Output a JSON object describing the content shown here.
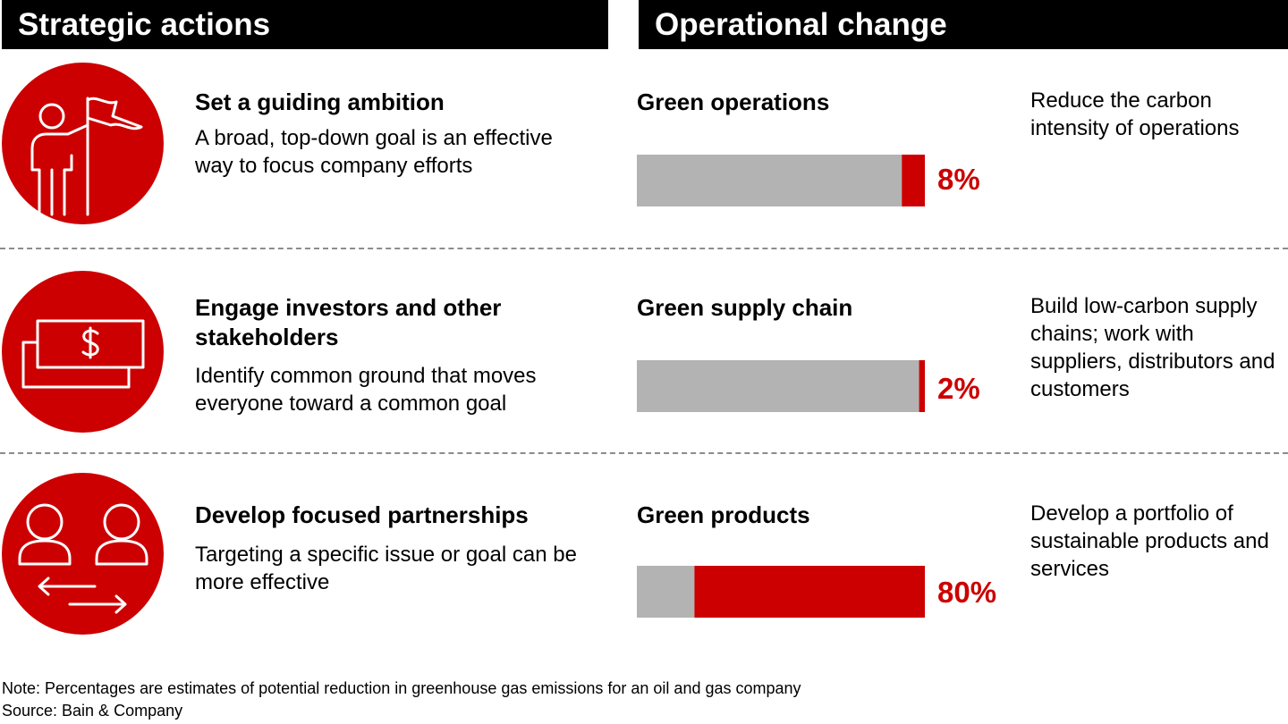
{
  "headers": {
    "left": "Strategic actions",
    "right": "Operational change"
  },
  "colors": {
    "accent": "#cc0000",
    "bar_background": "#b3b3b3",
    "header_background": "#000000"
  },
  "rows": [
    {
      "icon": "person-with-flag-icon",
      "action_title": "Set a guiding ambition",
      "action_desc": "A broad, top-down goal is an effective way to focus company efforts",
      "op_title": "Green operations",
      "op_desc": "Reduce the carbon intensity of operations",
      "pct_label": "8%"
    },
    {
      "icon": "dollar-bills-icon",
      "action_title": "Engage investors and other stakeholders",
      "action_desc": "Identify common ground that moves everyone toward a common goal",
      "op_title": "Green supply chain",
      "op_desc": "Build low-carbon supply chains; work with suppliers, distributors and customers",
      "pct_label": "2%"
    },
    {
      "icon": "people-exchange-icon",
      "action_title": "Develop focused partnerships",
      "action_desc": "Targeting a specific issue or goal can be more effective",
      "op_title": "Green products",
      "op_desc": "Develop a portfolio of sustainable products and services",
      "pct_label": "80%"
    }
  ],
  "chart_data": {
    "type": "bar",
    "orientation": "horizontal-stacked-share",
    "categories": [
      "Green operations",
      "Green supply chain",
      "Green products"
    ],
    "values": [
      8,
      2,
      80
    ],
    "value_unit": "%",
    "xlim": [
      0,
      100
    ],
    "grid": false
  },
  "footnote": {
    "note": "Note: Percentages are estimates of potential reduction in greenhouse gas emissions for an oil and gas company",
    "source": "Source: Bain & Company"
  }
}
